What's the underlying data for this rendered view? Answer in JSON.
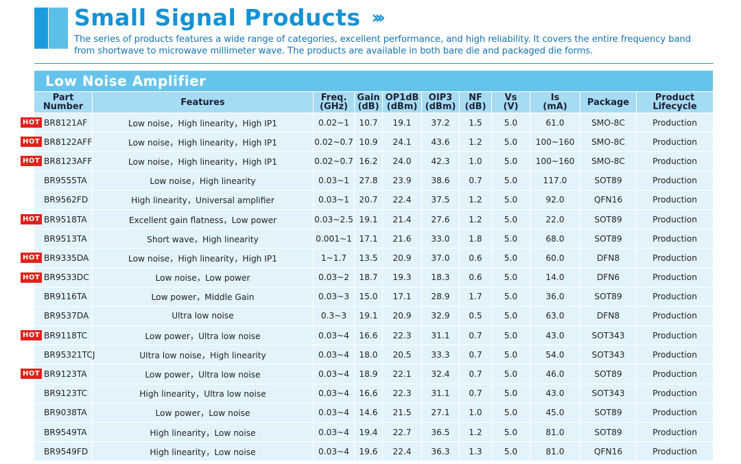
{
  "header": {
    "title": "Small Signal Products",
    "description": "The series of products features a wide range of categories, excellent performance, and high reliability. It covers the entire frequency band from shortwave to microwave millimeter wave. The products are available in both bare die and packaged die forms."
  },
  "section_title": "Low Noise Amplifier",
  "hot_label": "HOT",
  "columns": [
    {
      "line1": "Part",
      "line2": "Number"
    },
    {
      "line1": "Features",
      "line2": ""
    },
    {
      "line1": "Freq.",
      "line2": "(GHz)"
    },
    {
      "line1": "Gain",
      "line2": "(dB)"
    },
    {
      "line1": "OP1dB",
      "line2": "(dBm)"
    },
    {
      "line1": "OIP3",
      "line2": "(dBm)"
    },
    {
      "line1": "NF",
      "line2": "(dB)"
    },
    {
      "line1": "Vs",
      "line2": "(V)"
    },
    {
      "line1": "Is",
      "line2": "(mA)"
    },
    {
      "line1": "Package",
      "line2": ""
    },
    {
      "line1": "Product",
      "line2": "Lifecycle"
    }
  ],
  "rows": [
    {
      "hot": true,
      "part": "BR8121AF",
      "features": "Low noise，High linearity，High IP1",
      "freq": "0.02~1",
      "gain": "10.7",
      "op1db": "19.1",
      "oip3": "37.2",
      "nf": "1.5",
      "vs": "5.0",
      "is": "61.0",
      "package": "SMO-8C",
      "lifecycle": "Production"
    },
    {
      "hot": true,
      "part": "BR8122AFF",
      "features": "Low noise，High linearity，High IP1",
      "freq": "0.02~0.7",
      "gain": "10.9",
      "op1db": "24.1",
      "oip3": "43.6",
      "nf": "1.2",
      "vs": "5.0",
      "is": "100~160",
      "package": "SMO-8C",
      "lifecycle": "Production"
    },
    {
      "hot": true,
      "part": "BR8123AFF",
      "features": "Low noise，High linearity，High IP1",
      "freq": "0.02~0.7",
      "gain": "16.2",
      "op1db": "24.0",
      "oip3": "42.3",
      "nf": "1.0",
      "vs": "5.0",
      "is": "100~160",
      "package": "SMO-8C",
      "lifecycle": "Production"
    },
    {
      "hot": false,
      "part": "BR9555TA",
      "features": "Low noise，High linearity",
      "freq": "0.03~1",
      "gain": "27.8",
      "op1db": "23.9",
      "oip3": "38.6",
      "nf": "0.7",
      "vs": "5.0",
      "is": "117.0",
      "package": "SOT89",
      "lifecycle": "Production"
    },
    {
      "hot": false,
      "part": "BR9562FD",
      "features": "High linearity，Universal amplifier",
      "freq": "0.03~1",
      "gain": "20.7",
      "op1db": "22.4",
      "oip3": "37.5",
      "nf": "1.2",
      "vs": "5.0",
      "is": "92.0",
      "package": "QFN16",
      "lifecycle": "Production"
    },
    {
      "hot": true,
      "part": "BR9518TA",
      "features": "Excellent gain flatness，Low power",
      "freq": "0.03~2.5",
      "gain": "19.1",
      "op1db": "21.4",
      "oip3": "27.6",
      "nf": "1.2",
      "vs": "5.0",
      "is": "22.0",
      "package": "SOT89",
      "lifecycle": "Production"
    },
    {
      "hot": false,
      "part": "BR9513TA",
      "features": "Short wave，High linearity",
      "freq": "0.001~1",
      "gain": "17.1",
      "op1db": "21.6",
      "oip3": "33.0",
      "nf": "1.8",
      "vs": "5.0",
      "is": "68.0",
      "package": "SOT89",
      "lifecycle": "Production"
    },
    {
      "hot": true,
      "part": "BR9335DA",
      "features": "Low noise，High linearity，High IP1",
      "freq": "1~1.7",
      "gain": "13.5",
      "op1db": "20.9",
      "oip3": "37.0",
      "nf": "0.6",
      "vs": "5.0",
      "is": "60.0",
      "package": "DFN8",
      "lifecycle": "Production"
    },
    {
      "hot": true,
      "part": "BR9533DC",
      "features": "Low noise，Low power",
      "freq": "0.03~2",
      "gain": "18.7",
      "op1db": "19.3",
      "oip3": "18.3",
      "nf": "0.6",
      "vs": "5.0",
      "is": "14.0",
      "package": "DFN6",
      "lifecycle": "Production"
    },
    {
      "hot": false,
      "part": "BR9116TA",
      "features": "Low power，Middle Gain",
      "freq": "0.03~3",
      "gain": "15.0",
      "op1db": "17.1",
      "oip3": "28.9",
      "nf": "1.7",
      "vs": "5.0",
      "is": "36.0",
      "package": "SOT89",
      "lifecycle": "Production"
    },
    {
      "hot": false,
      "part": "BR9537DA",
      "features": "Ultra low noise",
      "freq": "0.3~3",
      "gain": "19.1",
      "op1db": "20.9",
      "oip3": "32.9",
      "nf": "0.5",
      "vs": "5.0",
      "is": "63.0",
      "package": "DFN8",
      "lifecycle": "Production"
    },
    {
      "hot": true,
      "part": "BR9118TC",
      "features": "Low power，Ultra low noise",
      "freq": "0.03~4",
      "gain": "16.6",
      "op1db": "22.3",
      "oip3": "31.1",
      "nf": "0.7",
      "vs": "5.0",
      "is": "43.0",
      "package": "SOT343",
      "lifecycle": "Production"
    },
    {
      "hot": false,
      "part": "BR95321TCJ",
      "features": "Ultra low noise，High linearity",
      "freq": "0.03~4",
      "gain": "18.0",
      "op1db": "20.5",
      "oip3": "33.3",
      "nf": "0.7",
      "vs": "5.0",
      "is": "54.0",
      "package": "SOT343",
      "lifecycle": "Production"
    },
    {
      "hot": true,
      "part": "BR9123TA",
      "features": "Low power，Ultra low noise",
      "freq": "0.03~4",
      "gain": "18.9",
      "op1db": "22.1",
      "oip3": "32.4",
      "nf": "0.7",
      "vs": "5.0",
      "is": "46.0",
      "package": "SOT89",
      "lifecycle": "Production"
    },
    {
      "hot": false,
      "part": "BR9123TC",
      "features": "High linearity，Ultra low noise",
      "freq": "0.03~4",
      "gain": "16.6",
      "op1db": "22.3",
      "oip3": "31.1",
      "nf": "0.7",
      "vs": "5.0",
      "is": "43.0",
      "package": "SOT343",
      "lifecycle": "Production"
    },
    {
      "hot": false,
      "part": "BR9038TA",
      "features": "Low power，Low noise",
      "freq": "0.03~4",
      "gain": "14.6",
      "op1db": "21.5",
      "oip3": "27.1",
      "nf": "1.0",
      "vs": "5.0",
      "is": "45.0",
      "package": "SOT89",
      "lifecycle": "Production"
    },
    {
      "hot": false,
      "part": "BR9549TA",
      "features": "High linearity，Low noise",
      "freq": "0.03~4",
      "gain": "19.4",
      "op1db": "22.7",
      "oip3": "36.5",
      "nf": "1.2",
      "vs": "5.0",
      "is": "81.0",
      "package": "SOT89",
      "lifecycle": "Production"
    },
    {
      "hot": false,
      "part": "BR9549FD",
      "features": "High linearity，Low noise",
      "freq": "0.03~4",
      "gain": "19.6",
      "op1db": "22.4",
      "oip3": "36.3",
      "nf": "1.3",
      "vs": "5.0",
      "is": "81.0",
      "package": "QFN16",
      "lifecycle": "Production"
    }
  ],
  "colors": {
    "accent": "#1492d6",
    "section_bg": "#66c4ec",
    "header_bg": "#a6dbf4",
    "row_bg": "#e3f3fc",
    "hot": "#e3201b"
  }
}
